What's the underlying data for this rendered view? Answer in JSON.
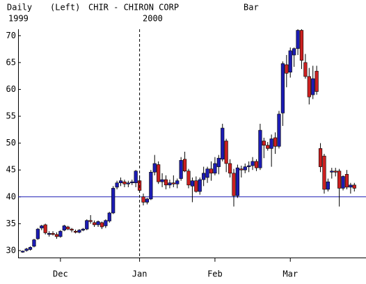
{
  "chart_data": {
    "type": "candlestick",
    "header": [
      "Daily",
      "(Left)",
      "CHIR - CHIRON CORP",
      "Bar"
    ],
    "years": [
      "1999",
      "2000"
    ],
    "categories": [
      null,
      null,
      null,
      null,
      null,
      null,
      null,
      null,
      null,
      null,
      "Dec",
      null,
      null,
      null,
      null,
      null,
      null,
      null,
      null,
      null,
      null,
      null,
      null,
      null,
      null,
      null,
      null,
      null,
      null,
      null,
      null,
      "Jan",
      null,
      null,
      null,
      null,
      null,
      null,
      null,
      null,
      null,
      null,
      null,
      null,
      null,
      null,
      null,
      null,
      null,
      null,
      null,
      "Feb",
      null,
      null,
      null,
      null,
      null,
      null,
      null,
      null,
      null,
      null,
      null,
      null,
      null,
      null,
      null,
      null,
      null,
      null,
      null,
      "Mar",
      null,
      null,
      null,
      null,
      null,
      null,
      null,
      null,
      null,
      null,
      null,
      null,
      null,
      null,
      null,
      null,
      null
    ],
    "open": [
      29.8,
      30,
      30.2,
      30.8,
      32.2,
      34.2,
      34.8,
      33,
      33.2,
      33,
      32.6,
      33.8,
      34.4,
      34,
      33.6,
      33.4,
      33.8,
      34,
      35.6,
      35.2,
      34.8,
      35.2,
      34.6,
      35.5,
      37,
      41.8,
      42.6,
      42.8,
      42.4,
      42.6,
      42.6,
      43,
      40,
      39,
      39.6,
      44.6,
      46,
      42.8,
      43.2,
      42.2,
      42.6,
      42.4,
      43.4,
      47,
      44.8,
      42,
      43,
      41,
      43.2,
      43.6,
      45.2,
      44.4,
      45.6,
      47,
      50.4,
      46.2,
      44.4,
      40.2,
      45.2,
      45,
      45.6,
      45.8,
      46.6,
      45.4,
      50.4,
      49.6,
      49,
      51,
      49.4,
      55.6,
      64.6,
      63.2,
      66.4,
      67.6,
      71,
      65,
      62.4,
      59,
      63.4,
      49,
      47.6,
      41.4,
      44.6,
      44.8,
      44.8,
      41.6,
      44.2,
      41.8,
      42.2
    ],
    "high": [
      30,
      30.5,
      30.8,
      32.2,
      34.2,
      34.8,
      35,
      33.6,
      33.6,
      33.4,
      33.8,
      34.8,
      34.6,
      34.2,
      33.9,
      34,
      34.2,
      35.8,
      36.6,
      35.6,
      35.6,
      35.4,
      35.8,
      37.2,
      42,
      43,
      43.6,
      43.2,
      43,
      43.2,
      45,
      44,
      40.6,
      39.8,
      45,
      47.8,
      46.6,
      44.4,
      44,
      43.2,
      44,
      43.4,
      47.4,
      48.4,
      45.2,
      43.6,
      43.8,
      43.6,
      45.6,
      45.6,
      46.6,
      47.4,
      47.8,
      53.6,
      50.8,
      47,
      45.2,
      46,
      45.8,
      46.2,
      46.6,
      47.4,
      47,
      53.6,
      51,
      50.2,
      51.6,
      52,
      56,
      65.2,
      66.4,
      67.8,
      67.8,
      71.2,
      71.2,
      66.6,
      64,
      64.4,
      64.4,
      50,
      48,
      43.4,
      45.4,
      45.4,
      45.2,
      44,
      45,
      42.6,
      42.6
    ],
    "low": [
      29.6,
      29.8,
      30,
      30.6,
      32,
      33.8,
      33,
      32.6,
      32.8,
      32.2,
      32.4,
      33.6,
      33.8,
      33.4,
      33.2,
      33.2,
      33.6,
      33.8,
      35,
      34.4,
      34.4,
      34,
      34.2,
      35.2,
      36.8,
      41.4,
      42,
      41.8,
      41.8,
      42.2,
      41.8,
      40.8,
      38.4,
      38.6,
      39.4,
      44,
      42.4,
      41.8,
      41.4,
      41.6,
      41.8,
      41.6,
      43,
      44.6,
      41.6,
      39,
      40.8,
      40.4,
      42,
      42.6,
      43,
      44,
      44.2,
      46.6,
      44.6,
      43.6,
      38.2,
      39.8,
      43.6,
      44.4,
      44.6,
      45,
      44.8,
      45,
      47.2,
      48.6,
      45.6,
      48,
      49,
      53.2,
      60.4,
      62.2,
      64.2,
      66.4,
      63.8,
      62,
      57.2,
      58.2,
      59,
      44.6,
      40.6,
      41,
      43.4,
      43.8,
      38.2,
      41.2,
      41.4,
      40.6,
      41
    ],
    "close": [
      29.9,
      30.3,
      30.6,
      32,
      34,
      34.6,
      33.3,
      33.2,
      33,
      32.6,
      33.6,
      34.6,
      34,
      33.8,
      33.5,
      33.8,
      34,
      35.6,
      35.4,
      34.8,
      35.4,
      34.4,
      35.6,
      37,
      41.6,
      42.6,
      43,
      42.4,
      42.6,
      42.8,
      44.8,
      41.2,
      39,
      39.6,
      44.6,
      46.2,
      42.8,
      43.2,
      42.2,
      42.6,
      42.4,
      43,
      46.8,
      44.8,
      42.2,
      43,
      41,
      43.2,
      44.4,
      45.2,
      44.4,
      46.2,
      47.2,
      52.8,
      46.2,
      44.4,
      40.2,
      45.4,
      45,
      45.6,
      45.8,
      46.6,
      45.4,
      52.4,
      49.6,
      49,
      50.8,
      49.4,
      55.4,
      64.8,
      63,
      67.2,
      67.6,
      71,
      65.4,
      62.4,
      58.6,
      62,
      59.6,
      45.6,
      41.4,
      42.8,
      44.8,
      44.6,
      41.6,
      43.8,
      41.8,
      42.2,
      41.6
    ],
    "up_color": "#1c1cb4",
    "down_color": "#cc2020",
    "ylim": [
      28.7,
      71.2
    ],
    "yticks": [
      30,
      35,
      40,
      45,
      50,
      55,
      60,
      65,
      70
    ],
    "hline": 40,
    "hline_color": "#1c1cb4"
  }
}
